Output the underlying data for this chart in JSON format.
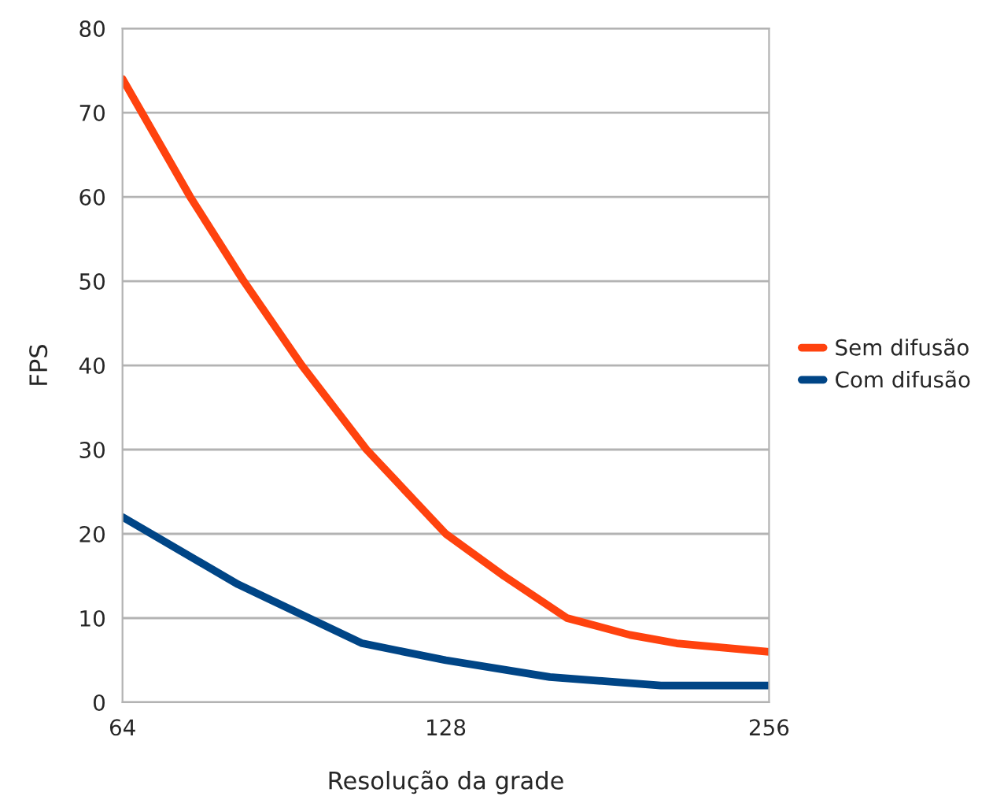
{
  "chart_data": {
    "type": "line",
    "xlabel": "Resolução da grade",
    "ylabel": "FPS",
    "series": [
      {
        "name": "Sem difusão",
        "color": "#ff420e",
        "x": [
          64,
          74,
          83,
          94,
          108,
          128,
          145,
          166,
          190,
          210,
          256
        ],
        "values": [
          74,
          60,
          50,
          40,
          30,
          20,
          15,
          10,
          8,
          7,
          6
        ]
      },
      {
        "name": "Com difusão",
        "color": "#004586",
        "x": [
          64,
          82,
          107,
          128,
          160,
          203,
          256
        ],
        "values": [
          22,
          14,
          7,
          5,
          3,
          2,
          2
        ]
      }
    ],
    "log": "x",
    "xlim": [
      64,
      256
    ],
    "xticks": [
      64,
      128,
      256
    ],
    "ylim": [
      0,
      80
    ],
    "yticks": [
      0,
      10,
      20,
      30,
      40,
      50,
      60,
      70,
      80
    ],
    "grid": "y",
    "legend": "right",
    "marker": "none",
    "line_style": "solid"
  }
}
